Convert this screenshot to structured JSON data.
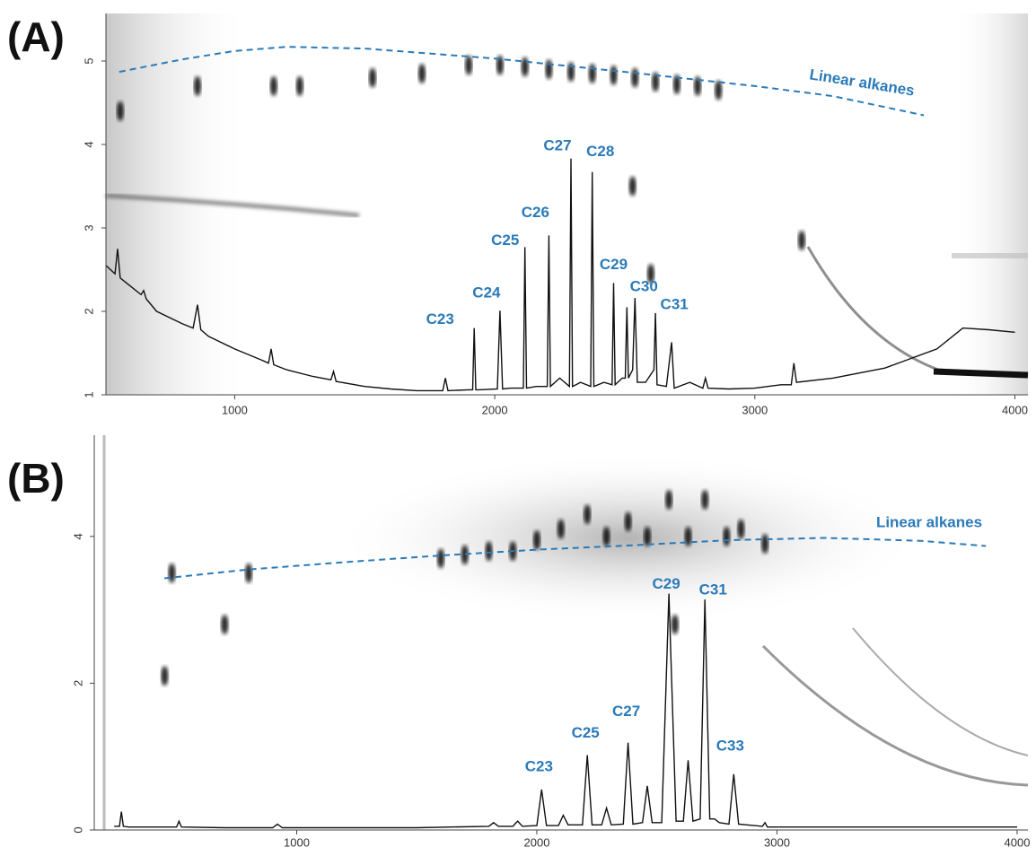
{
  "chart_data": [
    {
      "type": "line",
      "panel_label": "(A)",
      "xlim": [
        505,
        4050
      ],
      "ylim": [
        1,
        5.57
      ],
      "xticks": [
        1000,
        2000,
        3000,
        4000
      ],
      "yticks": [
        1,
        2,
        3,
        4,
        5
      ],
      "label_color": "#2a7ab8",
      "series": [
        {
          "color": "#111111",
          "x": [
            505,
            540,
            550,
            560,
            600,
            640,
            650,
            660,
            700,
            800,
            840,
            857,
            870,
            900,
            1000,
            1100,
            1130,
            1140,
            1150,
            1200,
            1300,
            1370,
            1380,
            1390,
            1500,
            1600,
            1700,
            1800,
            1810,
            1820,
            1900,
            1915,
            1921,
            1927,
            1940,
            2010,
            2020,
            2030,
            2060,
            2110,
            2116,
            2122,
            2160,
            2202,
            2208,
            2214,
            2250,
            2287,
            2293,
            2299,
            2330,
            2369,
            2375,
            2381,
            2420,
            2451,
            2457,
            2463,
            2490,
            2502,
            2508,
            2514,
            2530,
            2539,
            2548,
            2580,
            2612,
            2618,
            2624,
            2660,
            2680,
            2690,
            2750,
            2800,
            2810,
            2820,
            2900,
            3000,
            3100,
            3140,
            3150,
            3160,
            3300,
            3500,
            3700,
            3800,
            3900,
            4000
          ],
          "values": [
            2.55,
            2.45,
            2.75,
            2.4,
            2.3,
            2.2,
            2.25,
            2.15,
            2.0,
            1.85,
            1.8,
            2.08,
            1.78,
            1.7,
            1.55,
            1.42,
            1.38,
            1.55,
            1.36,
            1.3,
            1.22,
            1.18,
            1.28,
            1.16,
            1.1,
            1.07,
            1.05,
            1.05,
            1.2,
            1.05,
            1.06,
            1.06,
            1.8,
            1.06,
            1.06,
            1.07,
            2.01,
            1.07,
            1.08,
            1.08,
            2.77,
            1.08,
            1.1,
            1.1,
            2.91,
            1.1,
            1.2,
            1.1,
            3.83,
            1.1,
            1.15,
            1.1,
            3.67,
            1.1,
            1.15,
            1.12,
            2.34,
            1.12,
            1.2,
            1.2,
            2.05,
            1.2,
            1.3,
            2.16,
            1.15,
            1.15,
            1.3,
            1.98,
            1.12,
            1.1,
            1.63,
            1.08,
            1.15,
            1.08,
            1.2,
            1.08,
            1.07,
            1.08,
            1.12,
            1.12,
            1.38,
            1.15,
            1.2,
            1.32,
            1.55,
            1.8,
            1.78,
            1.75
          ]
        },
        {
          "name": "Linear alkanes",
          "color": "#2a7ab8",
          "dashed": true,
          "x": [
            556,
            800,
            1000,
            1200,
            1500,
            2000,
            2500,
            3000,
            3300,
            3650
          ],
          "values": [
            4.87,
            5.02,
            5.12,
            5.17,
            5.15,
            5.03,
            4.87,
            4.7,
            4.58,
            4.35
          ]
        }
      ],
      "spots": {
        "color": "#000000",
        "x": [
          560,
          857,
          1150,
          1250,
          1530,
          1720,
          1900,
          2020,
          2116,
          2208,
          2293,
          2375,
          2457,
          2539,
          2618,
          2700,
          2780,
          2860,
          2530,
          3180,
          2600
        ],
        "values": [
          4.4,
          4.7,
          4.7,
          4.7,
          4.8,
          4.85,
          4.95,
          4.95,
          4.93,
          4.9,
          4.87,
          4.85,
          4.83,
          4.8,
          4.75,
          4.72,
          4.7,
          4.65,
          3.5,
          2.85,
          2.45
        ]
      },
      "peak_labels": [
        {
          "text": "C23",
          "x": 1921,
          "y": 1.8
        },
        {
          "text": "C24",
          "x": 2020,
          "y": 2.01
        },
        {
          "text": "C25",
          "x": 2116,
          "y": 2.77
        },
        {
          "text": "C26",
          "x": 2208,
          "y": 2.91
        },
        {
          "text": "C27",
          "x": 2293,
          "y": 3.83
        },
        {
          "text": "C28",
          "x": 2375,
          "y": 3.67
        },
        {
          "text": "C29",
          "x": 2457,
          "y": 2.34
        },
        {
          "text": "C30",
          "x": 2539,
          "y": 2.16
        },
        {
          "text": "C31",
          "x": 2618,
          "y": 1.98
        }
      ]
    },
    {
      "type": "line",
      "panel_label": "(B)",
      "xlim": [
        157,
        4045
      ],
      "ylim": [
        0,
        5.38
      ],
      "xticks": [
        1000,
        2000,
        3000,
        4000
      ],
      "yticks": [
        0,
        2,
        4
      ],
      "label_color": "#2a7ab8",
      "series": [
        {
          "color": "#111111",
          "x": [
            240,
            262,
            270,
            278,
            300,
            500,
            510,
            520,
            700,
            900,
            920,
            940,
            1100,
            1500,
            1800,
            1820,
            1840,
            1900,
            1920,
            1940,
            2000,
            2020,
            2040,
            2090,
            2110,
            2130,
            2190,
            2210,
            2230,
            2270,
            2290,
            2310,
            2360,
            2380,
            2400,
            2440,
            2460,
            2480,
            2520,
            2550,
            2580,
            2610,
            2630,
            2650,
            2680,
            2700,
            2720,
            2740,
            2760,
            2800,
            2820,
            2840,
            2940,
            2950,
            2960,
            3200,
            3600,
            4000
          ],
          "values": [
            0.05,
            0.05,
            0.25,
            0.05,
            0.04,
            0.04,
            0.12,
            0.04,
            0.03,
            0.03,
            0.08,
            0.03,
            0.03,
            0.03,
            0.05,
            0.1,
            0.05,
            0.05,
            0.12,
            0.05,
            0.06,
            0.55,
            0.06,
            0.06,
            0.2,
            0.07,
            0.07,
            1.02,
            0.07,
            0.07,
            0.3,
            0.07,
            0.08,
            1.19,
            0.08,
            0.1,
            0.6,
            0.1,
            0.1,
            3.22,
            0.12,
            0.12,
            0.95,
            0.12,
            0.15,
            3.14,
            0.15,
            0.15,
            0.1,
            0.08,
            0.76,
            0.08,
            0.05,
            0.1,
            0.04,
            0.04,
            0.04,
            0.04
          ]
        },
        {
          "name": "Linear alkanes",
          "color": "#2a7ab8",
          "dashed": true,
          "x": [
            449,
            800,
            1200,
            1600,
            2000,
            2400,
            2800,
            3200,
            3600,
            3870
          ],
          "values": [
            3.43,
            3.55,
            3.65,
            3.74,
            3.82,
            3.88,
            3.95,
            3.98,
            3.94,
            3.87
          ]
        }
      ],
      "spots": {
        "color": "#000000",
        "x": [
          450,
          480,
          700,
          800,
          1600,
          1700,
          1800,
          1900,
          2000,
          2100,
          2210,
          2290,
          2380,
          2460,
          2550,
          2630,
          2700,
          2790,
          2850,
          2950,
          2575
        ],
        "values": [
          2.1,
          3.5,
          2.8,
          3.5,
          3.7,
          3.75,
          3.8,
          3.8,
          3.95,
          4.1,
          4.3,
          4.0,
          4.2,
          4.0,
          4.5,
          4.0,
          4.5,
          4.0,
          4.1,
          3.9,
          2.8
        ]
      },
      "peak_labels": [
        {
          "text": "C23",
          "x": 2020,
          "y": 0.55
        },
        {
          "text": "C25",
          "x": 2210,
          "y": 1.02
        },
        {
          "text": "C27",
          "x": 2380,
          "y": 1.19
        },
        {
          "text": "C29",
          "x": 2550,
          "y": 3.22
        },
        {
          "text": "C31",
          "x": 2700,
          "y": 3.14
        },
        {
          "text": "C33",
          "x": 2820,
          "y": 0.76
        }
      ]
    }
  ]
}
